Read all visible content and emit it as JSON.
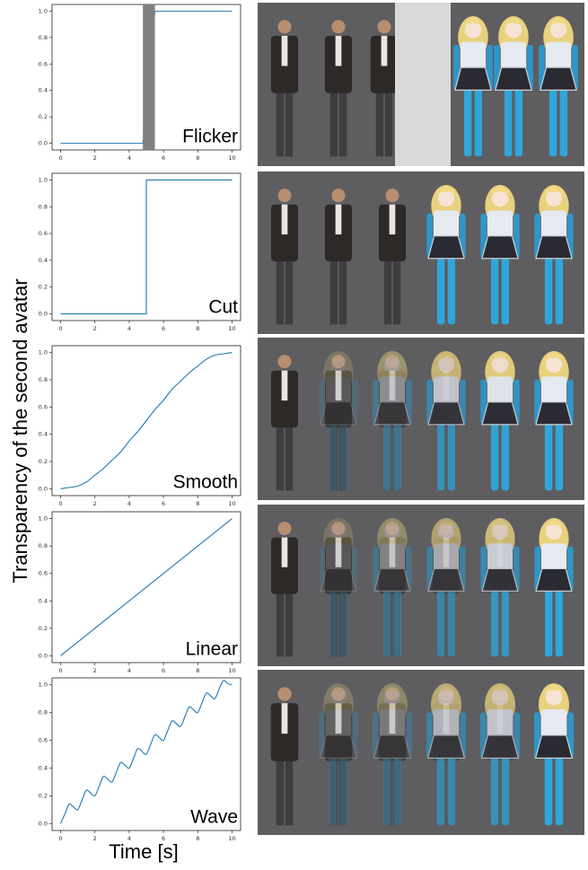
{
  "figure": {
    "ylabel": "Transparency of the second avatar",
    "xlabel": "Time [s]"
  },
  "chart_data": [
    {
      "type": "line",
      "title": "Flicker",
      "xlim": [
        -0.5,
        10.5
      ],
      "ylim": [
        -0.05,
        1.05
      ],
      "xticks": [
        0,
        2,
        4,
        6,
        8,
        10
      ],
      "yticks": [
        {
          "value": 0,
          "label": "0.0"
        },
        0.2,
        0.4,
        0.6,
        0.8,
        {
          "value": 1,
          "label": "1.0"
        }
      ],
      "x": [
        0,
        4.8,
        5.5,
        10
      ],
      "series": [
        {
          "color": "#1f77b4",
          "values": [
            0,
            0,
            1,
            1
          ]
        }
      ],
      "span": {
        "x": [
          4.8,
          5.5
        ],
        "color": "#808080"
      }
    },
    {
      "type": "line",
      "title": "Cut",
      "xlim": [
        -0.5,
        10.5
      ],
      "ylim": [
        -0.05,
        1.05
      ],
      "xticks": [
        0,
        2,
        4,
        6,
        8,
        10
      ],
      "yticks": [
        {
          "value": 0,
          "label": "0.0"
        },
        0.2,
        0.4,
        0.6,
        0.8,
        {
          "value": 1,
          "label": "1.0"
        }
      ],
      "x": [
        0,
        5,
        5,
        10
      ],
      "series": [
        {
          "color": "#1f77b4",
          "values": [
            0,
            0,
            1,
            1
          ]
        }
      ]
    },
    {
      "type": "line",
      "title": "Smooth",
      "xlim": [
        -0.5,
        10.5
      ],
      "ylim": [
        -0.05,
        1.05
      ],
      "xticks": [
        0,
        2,
        4,
        6,
        8,
        10
      ],
      "yticks": [
        {
          "value": 0,
          "label": "0.0"
        },
        0.2,
        0.4,
        0.6,
        0.8,
        {
          "value": 1,
          "label": "1.0"
        }
      ],
      "x": [
        0,
        0.5,
        1,
        1.5,
        2,
        2.5,
        3,
        3.5,
        4,
        4.5,
        5,
        5.5,
        6,
        6.5,
        7,
        7.5,
        8,
        8.5,
        9,
        9.5,
        10
      ],
      "series": [
        {
          "color": "#1f77b4",
          "values": [
            0,
            0.01,
            0.02,
            0.05,
            0.1,
            0.15,
            0.21,
            0.27,
            0.35,
            0.42,
            0.5,
            0.58,
            0.65,
            0.73,
            0.79,
            0.85,
            0.9,
            0.95,
            0.98,
            0.99,
            1
          ]
        }
      ]
    },
    {
      "type": "line",
      "title": "Linear",
      "xlim": [
        -0.5,
        10.5
      ],
      "ylim": [
        -0.05,
        1.05
      ],
      "xticks": [
        0,
        2,
        4,
        6,
        8,
        10
      ],
      "yticks": [
        {
          "value": 0,
          "label": "0.0"
        },
        0.2,
        0.4,
        0.6,
        0.8,
        {
          "value": 1,
          "label": "1.0"
        }
      ],
      "x": [
        0,
        10
      ],
      "series": [
        {
          "color": "#1f77b4",
          "values": [
            0,
            1
          ]
        }
      ]
    },
    {
      "type": "line",
      "title": "Wave",
      "xlim": [
        -0.5,
        10.5
      ],
      "ylim": [
        -0.05,
        1.05
      ],
      "xticks": [
        0,
        2,
        4,
        6,
        8,
        10
      ],
      "yticks": [
        {
          "value": 0,
          "label": "0.0"
        },
        0.2,
        0.4,
        0.6,
        0.8,
        {
          "value": 1,
          "label": "1.0"
        }
      ],
      "x": [
        0,
        0.25,
        0.5,
        0.75,
        1,
        1.25,
        1.5,
        1.75,
        2,
        2.25,
        2.5,
        2.75,
        3,
        3.25,
        3.5,
        3.75,
        4,
        4.25,
        4.5,
        4.75,
        5,
        5.25,
        5.5,
        5.75,
        6,
        6.25,
        6.5,
        6.75,
        7,
        7.25,
        7.5,
        7.75,
        8,
        8.25,
        8.5,
        8.75,
        9,
        9.25,
        9.5,
        9.75,
        10
      ],
      "series": [
        {
          "color": "#1f77b4",
          "values": [
            0,
            0.07,
            0.14,
            0.12,
            0.1,
            0.17,
            0.24,
            0.22,
            0.2,
            0.27,
            0.34,
            0.32,
            0.3,
            0.37,
            0.44,
            0.42,
            0.4,
            0.47,
            0.54,
            0.52,
            0.5,
            0.57,
            0.64,
            0.62,
            0.6,
            0.67,
            0.74,
            0.72,
            0.7,
            0.77,
            0.84,
            0.82,
            0.8,
            0.87,
            0.94,
            0.92,
            0.9,
            0.97,
            1.03,
            1.01,
            1
          ]
        }
      ]
    }
  ]
}
